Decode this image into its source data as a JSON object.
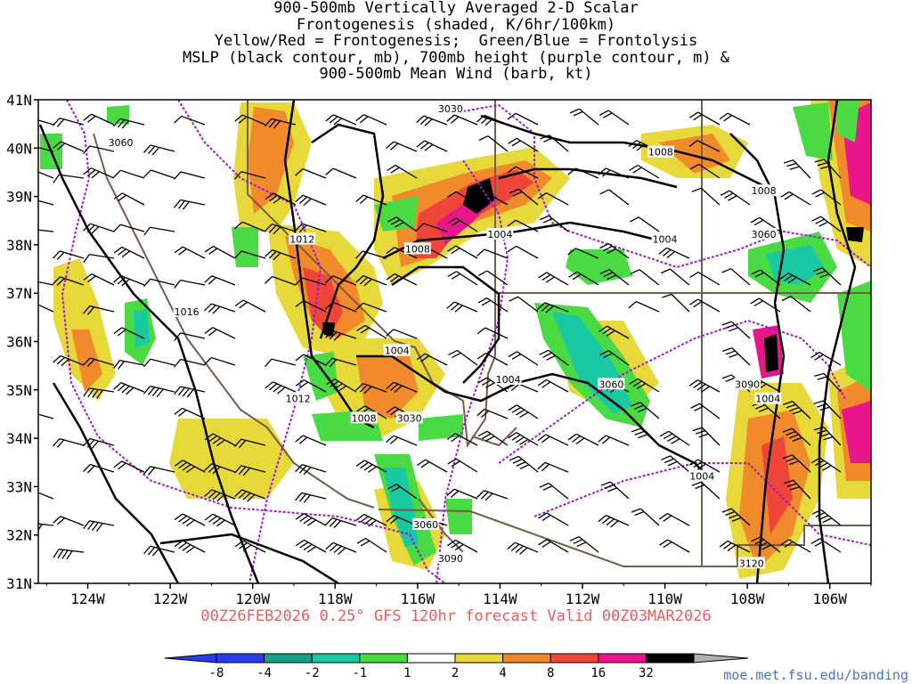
{
  "title_lines": [
    "900-500mb Vertically Averaged 2-D Scalar",
    "Frontogenesis (shaded, K/6hr/100km)",
    "Yellow/Red = Frontogenesis;  Green/Blue = Frontolysis",
    "MSLP (black contour, mb), 700mb height (purple contour, m) &",
    "900-500mb Mean Wind (barb, kt)"
  ],
  "valid_line": "00Z26FEB2026 0.25° GFS 120hr forecast Valid 00Z03MAR2026",
  "credit": "moe.met.fsu.edu/banding",
  "lat_labels": [
    "41N",
    "40N",
    "39N",
    "38N",
    "37N",
    "36N",
    "35N",
    "34N",
    "33N",
    "32N",
    "31N"
  ],
  "lon_labels": [
    "124W",
    "122W",
    "120W",
    "118W",
    "116W",
    "114W",
    "112W",
    "110W",
    "108W",
    "106W"
  ],
  "colorbar": {
    "labels": [
      "-8",
      "-4",
      "-2",
      "-1",
      "1",
      "2",
      "4",
      "8",
      "16",
      "32"
    ],
    "colors": [
      "#2b3be8",
      "#13a08a",
      "#18c9a4",
      "#4adb44",
      "#ffffff",
      "#e7d93a",
      "#f08a2a",
      "#f0463a",
      "#e8168a",
      "#000000"
    ]
  },
  "mslp_labels": [
    {
      "text": "1012",
      "lon": -118.8,
      "lat": 38.1
    },
    {
      "text": "1016",
      "lon": -121.6,
      "lat": 36.6
    },
    {
      "text": "1008",
      "lon": -116.0,
      "lat": 37.9
    },
    {
      "text": "1004",
      "lon": -114.0,
      "lat": 38.2
    },
    {
      "text": "1004",
      "lon": -116.5,
      "lat": 35.8
    },
    {
      "text": "1012",
      "lon": -118.9,
      "lat": 34.8
    },
    {
      "text": "1008",
      "lon": -117.3,
      "lat": 34.4
    },
    {
      "text": "1004",
      "lon": -113.8,
      "lat": 35.2
    },
    {
      "text": "1008",
      "lon": -110.1,
      "lat": 39.9
    },
    {
      "text": "1004",
      "lon": -110.0,
      "lat": 38.1
    },
    {
      "text": "1008",
      "lon": -107.6,
      "lat": 39.1
    },
    {
      "text": "1004",
      "lon": -107.5,
      "lat": 34.8
    },
    {
      "text": "1004",
      "lon": -109.1,
      "lat": 33.2
    }
  ],
  "height_labels": [
    {
      "text": "3060",
      "lon": -123.2,
      "lat": 40.1
    },
    {
      "text": "3030",
      "lon": -115.2,
      "lat": 40.8
    },
    {
      "text": "3060",
      "lon": -107.6,
      "lat": 38.2
    },
    {
      "text": "3060",
      "lon": -111.3,
      "lat": 35.1
    },
    {
      "text": "3090",
      "lon": -108.0,
      "lat": 35.1
    },
    {
      "text": "3030",
      "lon": -116.2,
      "lat": 34.4
    },
    {
      "text": "3060",
      "lon": -115.8,
      "lat": 32.2
    },
    {
      "text": "3090",
      "lon": -115.2,
      "lat": 31.5
    },
    {
      "text": "3120",
      "lon": -107.9,
      "lat": 31.4
    }
  ]
}
